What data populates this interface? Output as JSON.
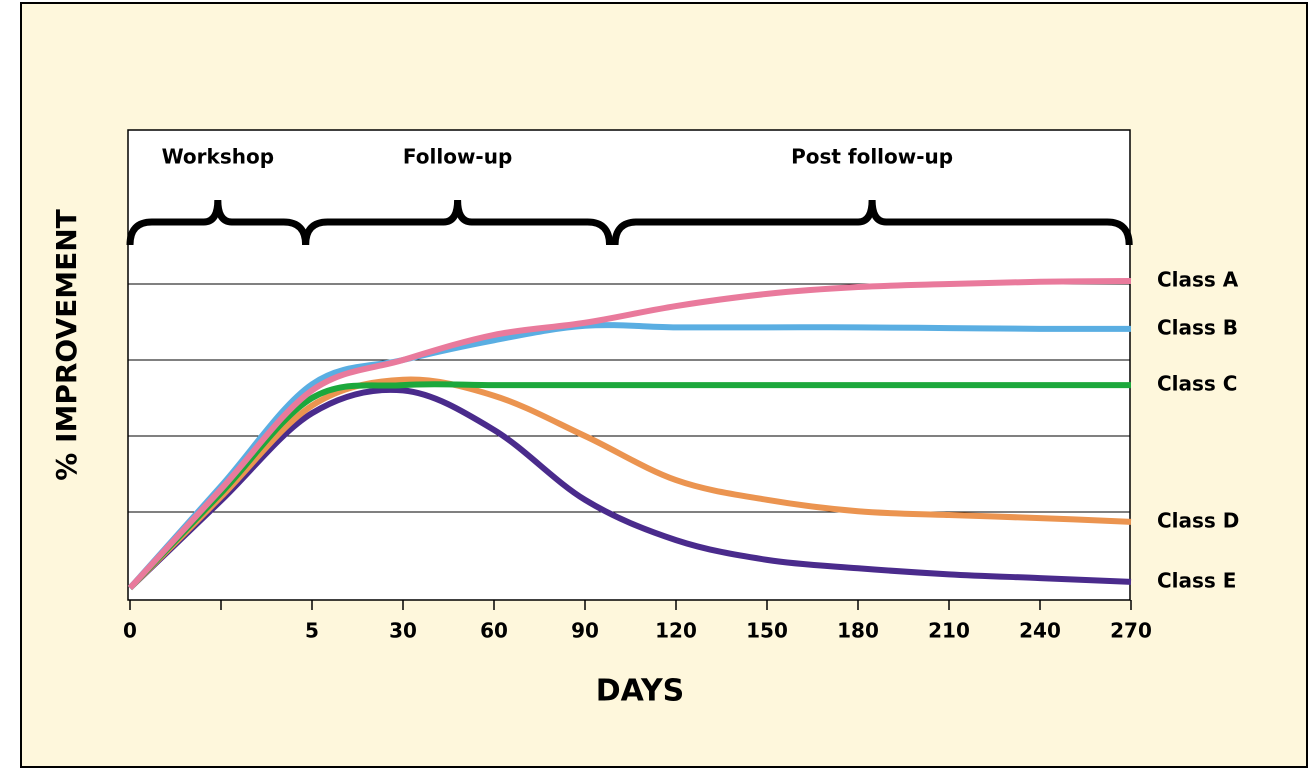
{
  "chart_data": {
    "type": "line",
    "y_axis_label": "% IMPROVEMENT",
    "x_axis_label": "DAYS",
    "categories": [
      "0",
      null,
      "5",
      "30",
      "60",
      "90",
      "120",
      "150",
      "180",
      "210",
      "240",
      "270"
    ],
    "ylim": [
      0,
      6
    ],
    "grid_lines": [
      1,
      2,
      3,
      4
    ],
    "phases": [
      "Workshop",
      "Follow-up",
      "Post follow-up"
    ],
    "series": [
      {
        "name": "Class A",
        "color": "#e97a9c",
        "values": [
          0,
          1.3,
          2.6,
          3.0,
          3.33,
          3.49,
          3.71,
          3.87,
          3.96,
          4.0,
          4.03,
          4.04
        ]
      },
      {
        "name": "Class B",
        "color": "#5aaee2",
        "values": [
          0,
          1.34,
          2.68,
          3.0,
          3.26,
          3.45,
          3.43,
          3.43,
          3.43,
          3.42,
          3.41,
          3.41
        ]
      },
      {
        "name": "Class C",
        "color": "#1ca83c",
        "values": [
          0,
          1.25,
          2.5,
          2.67,
          2.67,
          2.67,
          2.67,
          2.67,
          2.67,
          2.67,
          2.67,
          2.67
        ]
      },
      {
        "name": "Class D",
        "color": "#eb9450",
        "values": [
          0,
          1.2,
          2.4,
          2.74,
          2.53,
          2.0,
          1.42,
          1.16,
          1.01,
          0.96,
          0.92,
          0.87
        ]
      },
      {
        "name": "Class E",
        "color": "#4a2b8c",
        "values": [
          0,
          1.15,
          2.3,
          2.6,
          2.08,
          1.16,
          0.63,
          0.37,
          0.26,
          0.18,
          0.13,
          0.08
        ]
      }
    ]
  }
}
